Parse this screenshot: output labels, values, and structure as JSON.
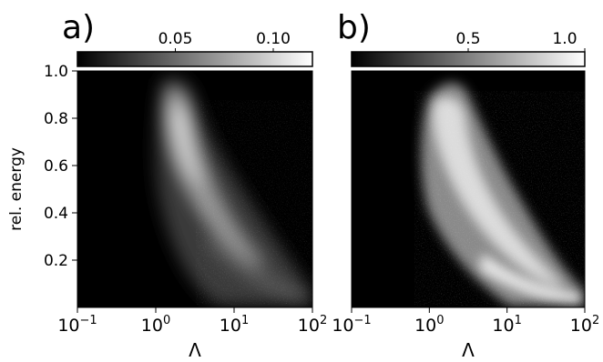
{
  "figure": {
    "ylabel": "rel. energy"
  },
  "chart_data": [
    {
      "type": "heatmap",
      "panel_label": "a)",
      "xlabel": "Λ",
      "ylabel": "rel. energy",
      "x_scale": "log",
      "xlim": [
        0.1,
        100
      ],
      "ylim": [
        0.0,
        1.0
      ],
      "x_ticks": [
        {
          "value": 0.1,
          "base": "10",
          "exp": "−1"
        },
        {
          "value": 1,
          "base": "10",
          "exp": "0"
        },
        {
          "value": 10,
          "base": "10",
          "exp": "1"
        },
        {
          "value": 100,
          "base": "10",
          "exp": "2"
        }
      ],
      "y_ticks": [
        {
          "value": 0.2,
          "label": "0.2"
        },
        {
          "value": 0.4,
          "label": "0.4"
        },
        {
          "value": 0.6,
          "label": "0.6"
        },
        {
          "value": 0.8,
          "label": "0.8"
        },
        {
          "value": 1.0,
          "label": "1.0"
        }
      ],
      "colormap": "gray",
      "colorbar": {
        "position": "top",
        "range": [
          0.0,
          0.12
        ],
        "ticks": [
          {
            "value": 0.05,
            "label": "0.05"
          },
          {
            "value": 0.1,
            "label": "0.10"
          }
        ]
      },
      "density_ridge": [
        {
          "lambda": 1.3,
          "energy": 0.85
        },
        {
          "lambda": 1.6,
          "energy": 0.75
        },
        {
          "lambda": 1.8,
          "energy": 0.65
        },
        {
          "lambda": 2.2,
          "energy": 0.55
        },
        {
          "lambda": 2.8,
          "energy": 0.45
        },
        {
          "lambda": 4.0,
          "energy": 0.35
        },
        {
          "lambda": 6.0,
          "energy": 0.25
        },
        {
          "lambda": 11.0,
          "energy": 0.15
        },
        {
          "lambda": 25.0,
          "energy": 0.08
        },
        {
          "lambda": 80.0,
          "energy": 0.03
        }
      ]
    },
    {
      "type": "heatmap",
      "panel_label": "b)",
      "xlabel": "Λ",
      "x_scale": "log",
      "xlim": [
        0.1,
        100
      ],
      "ylim": [
        0.0,
        1.0
      ],
      "x_ticks": [
        {
          "value": 0.1,
          "base": "10",
          "exp": "−1"
        },
        {
          "value": 1,
          "base": "10",
          "exp": "0"
        },
        {
          "value": 10,
          "base": "10",
          "exp": "1"
        },
        {
          "value": 100,
          "base": "10",
          "exp": "2"
        }
      ],
      "colormap": "gray",
      "colorbar": {
        "position": "top",
        "range": [
          0.0,
          1.0
        ],
        "ticks": [
          {
            "value": 0.5,
            "label": "0.5"
          },
          {
            "value": 1.0,
            "label": "1.0"
          }
        ]
      },
      "density_ridge": [
        {
          "lambda": 1.3,
          "energy": 0.85
        },
        {
          "lambda": 1.6,
          "energy": 0.75
        },
        {
          "lambda": 1.8,
          "energy": 0.65
        },
        {
          "lambda": 2.2,
          "energy": 0.55
        },
        {
          "lambda": 2.8,
          "energy": 0.45
        },
        {
          "lambda": 4.0,
          "energy": 0.35
        },
        {
          "lambda": 6.0,
          "energy": 0.25
        },
        {
          "lambda": 11.0,
          "energy": 0.15
        },
        {
          "lambda": 25.0,
          "energy": 0.08
        },
        {
          "lambda": 80.0,
          "energy": 0.03
        }
      ]
    }
  ]
}
